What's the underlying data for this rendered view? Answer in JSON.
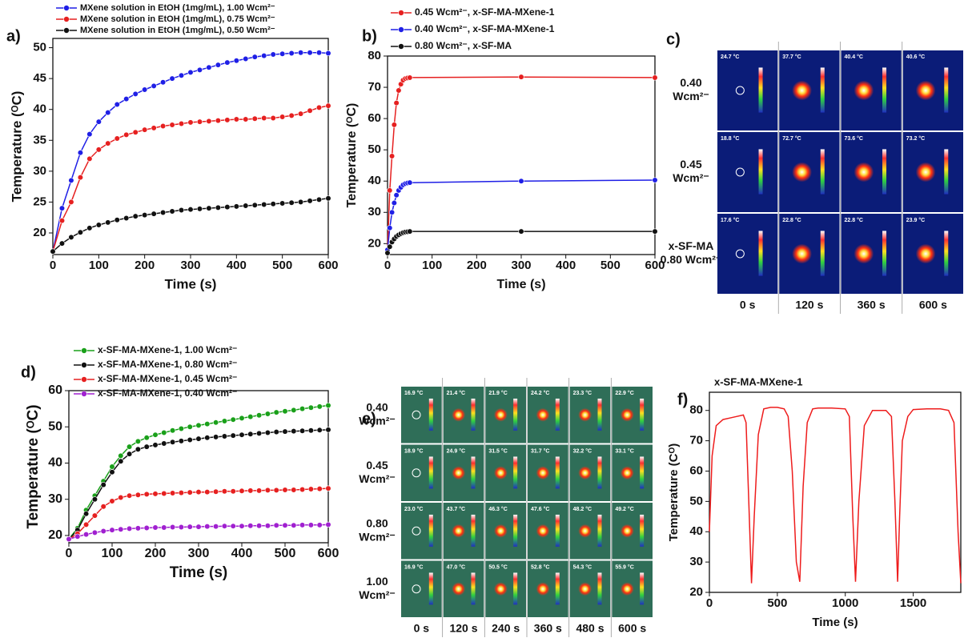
{
  "chart_data": [
    {
      "type": "line",
      "label": "a)",
      "xlabel": "Time (s)",
      "ylabel": "Temperature (ᴼC)",
      "markers": true,
      "xlim": [
        0,
        600
      ],
      "xticks": [
        0,
        100,
        200,
        300,
        400,
        500,
        600
      ],
      "ylim": [
        16.5,
        51.5
      ],
      "yticks": [
        20,
        25,
        30,
        35,
        40,
        45,
        50
      ],
      "x": [
        0,
        20,
        40,
        60,
        80,
        100,
        120,
        140,
        160,
        180,
        200,
        220,
        240,
        260,
        280,
        300,
        320,
        340,
        360,
        380,
        400,
        420,
        440,
        460,
        480,
        500,
        520,
        540,
        560,
        580,
        600
      ],
      "series": [
        {
          "name": "MXene solution in EtOH (1mg/mL), 1.00 Wcm²⁻",
          "color": "#1f1fe6",
          "values": [
            17,
            24,
            28.5,
            33,
            36,
            38,
            39.5,
            40.8,
            41.7,
            42.5,
            43.2,
            43.8,
            44.4,
            45,
            45.5,
            46,
            46.4,
            46.8,
            47.2,
            47.6,
            47.9,
            48.2,
            48.5,
            48.7,
            48.9,
            49,
            49.1,
            49.2,
            49.2,
            49.2,
            49.1
          ]
        },
        {
          "name": "MXene solution in EtOH (1mg/mL), 0.75 Wcm²⁻",
          "color": "#e62020",
          "values": [
            17,
            22,
            25,
            29,
            32,
            33.5,
            34.5,
            35.3,
            35.9,
            36.3,
            36.7,
            37,
            37.3,
            37.5,
            37.7,
            37.9,
            38,
            38.1,
            38.2,
            38.3,
            38.4,
            38.4,
            38.5,
            38.6,
            38.6,
            38.8,
            39,
            39.3,
            39.8,
            40.3,
            40.6
          ]
        },
        {
          "name": "MXene solution in EtOH (1mg/mL), 0.50 Wcm²⁻",
          "color": "#111111",
          "values": [
            17,
            18.3,
            19.3,
            20.1,
            20.8,
            21.3,
            21.7,
            22.1,
            22.4,
            22.7,
            22.9,
            23.1,
            23.3,
            23.5,
            23.7,
            23.8,
            23.9,
            24,
            24.1,
            24.2,
            24.3,
            24.4,
            24.5,
            24.6,
            24.7,
            24.8,
            24.9,
            25,
            25.2,
            25.4,
            25.6
          ]
        }
      ]
    },
    {
      "type": "line",
      "label": "b)",
      "xlabel": "Time (s)",
      "ylabel": "Temperature (ᴼC)",
      "markers": true,
      "xlim": [
        0,
        600
      ],
      "xticks": [
        0,
        100,
        200,
        300,
        400,
        500,
        600
      ],
      "ylim": [
        16.5,
        80
      ],
      "yticks": [
        20,
        30,
        40,
        50,
        60,
        70,
        80
      ],
      "x": [
        0,
        5,
        10,
        15,
        20,
        25,
        30,
        35,
        40,
        45,
        50,
        300,
        600
      ],
      "series": [
        {
          "name": "0.45 Wcm²⁻, x-SF-MA-MXene-1",
          "color": "#e62020",
          "values": [
            18,
            37,
            48,
            58,
            65,
            69,
            71,
            72.3,
            72.8,
            73,
            73.1,
            73.3,
            73.1
          ]
        },
        {
          "name": "0.40 Wcm²⁻, x-SF-MA-MXene-1",
          "color": "#1f1fe6",
          "values": [
            18,
            25,
            30,
            33,
            35.5,
            37,
            38,
            38.8,
            39.2,
            39.4,
            39.5,
            40,
            40.3
          ]
        },
        {
          "name": "0.80 Wcm²⁻, x-SF-MA",
          "color": "#111111",
          "values": [
            17,
            19,
            20.5,
            21.5,
            22.3,
            22.8,
            23.2,
            23.5,
            23.7,
            23.8,
            23.9,
            23.9,
            23.9
          ]
        }
      ]
    },
    {
      "type": "thermal-grid",
      "label": "c)",
      "background": "#0b1c78",
      "rows": [
        [
          "0.40",
          "Wcm²⁻"
        ],
        [
          "0.45",
          "Wcm²⁻"
        ],
        [
          "x-SF-MA",
          "0.80 Wcm²⁻"
        ]
      ],
      "columns": [
        "0 s",
        "120 s",
        "360 s",
        "600 s"
      ],
      "readings": [
        [
          "24.7 °C",
          "37.7 °C",
          "40.4 °C",
          "40.6 °C"
        ],
        [
          "18.8 °C",
          "72.7 °C",
          "73.6 °C",
          "73.2 °C"
        ],
        [
          "17.6 °C",
          "22.8 °C",
          "22.8 °C",
          "23.9 °C"
        ]
      ]
    },
    {
      "type": "line",
      "label": "d)",
      "xlabel": "Time (s)",
      "ylabel": "Temperature (ᴼC)",
      "markers": true,
      "xlim": [
        0,
        600
      ],
      "xticks": [
        0,
        100,
        200,
        300,
        400,
        500,
        600
      ],
      "ylim": [
        18,
        60
      ],
      "yticks": [
        20,
        30,
        40,
        50,
        60
      ],
      "x": [
        0,
        20,
        40,
        60,
        80,
        100,
        120,
        140,
        160,
        180,
        200,
        220,
        240,
        260,
        280,
        300,
        320,
        340,
        360,
        380,
        400,
        420,
        440,
        460,
        480,
        500,
        520,
        540,
        560,
        580,
        600
      ],
      "series": [
        {
          "name": "x-SF-MA-MXene-1, 1.00 Wcm²⁻",
          "color": "#1aa01a",
          "values": [
            19,
            22,
            27,
            31,
            35,
            39,
            42,
            44.5,
            46,
            47,
            47.8,
            48.4,
            49,
            49.5,
            50,
            50.4,
            50.8,
            51.2,
            51.6,
            52,
            52.4,
            52.8,
            53.2,
            53.6,
            54,
            54.3,
            54.6,
            55,
            55.3,
            55.6,
            55.9
          ]
        },
        {
          "name": "x-SF-MA-MXene-1, 0.80 Wcm²⁻",
          "color": "#111111",
          "values": [
            19,
            21.5,
            26,
            30,
            34,
            37.5,
            40.5,
            42.5,
            43.8,
            44.5,
            45,
            45.4,
            45.8,
            46.1,
            46.4,
            46.7,
            47,
            47.2,
            47.4,
            47.6,
            47.8,
            48,
            48.2,
            48.4,
            48.6,
            48.7,
            48.8,
            48.9,
            49,
            49.1,
            49.2
          ]
        },
        {
          "name": "x-SF-MA-MXene-1, 0.45 Wcm²⁻",
          "color": "#e62020",
          "values": [
            19,
            20.5,
            23,
            25.5,
            28,
            29.5,
            30.5,
            31,
            31.2,
            31.4,
            31.5,
            31.6,
            31.7,
            31.8,
            31.9,
            32,
            32,
            32.1,
            32.2,
            32.2,
            32.3,
            32.4,
            32.4,
            32.5,
            32.5,
            32.6,
            32.6,
            32.7,
            32.8,
            32.9,
            33
          ]
        },
        {
          "name": "x-SF-MA-MXene-1, 0.40 Wcm²⁻",
          "color": "#a020d0",
          "values": [
            19,
            19.7,
            20.3,
            20.8,
            21.2,
            21.5,
            21.7,
            21.9,
            22,
            22.1,
            22.2,
            22.2,
            22.3,
            22.3,
            22.4,
            22.4,
            22.5,
            22.5,
            22.6,
            22.6,
            22.6,
            22.7,
            22.7,
            22.7,
            22.8,
            22.8,
            22.8,
            22.9,
            22.9,
            22.9,
            23
          ]
        }
      ]
    },
    {
      "type": "thermal-grid",
      "label": "e)",
      "background": "#2f6e58",
      "rows": [
        [
          "0.40",
          "Wcm²⁻"
        ],
        [
          "0.45",
          "Wcm²⁻"
        ],
        [
          "0.80",
          "Wcm²⁻"
        ],
        [
          "1.00",
          "Wcm²⁻"
        ]
      ],
      "columns": [
        "0 s",
        "120 s",
        "240 s",
        "360 s",
        "480 s",
        "600 s"
      ],
      "readings": [
        [
          "16.9 °C",
          "21.4 °C",
          "21.9 °C",
          "24.2 °C",
          "23.3 °C",
          "22.9 °C"
        ],
        [
          "18.9 °C",
          "24.9 °C",
          "31.5 °C",
          "31.7 °C",
          "32.2 °C",
          "33.1 °C"
        ],
        [
          "23.0 °C",
          "43.7 °C",
          "46.3 °C",
          "47.6 °C",
          "48.2 °C",
          "49.2 °C"
        ],
        [
          "16.9 °C",
          "47.0 °C",
          "50.5 °C",
          "52.8 °C",
          "54.3 °C",
          "55.9 °C"
        ]
      ]
    },
    {
      "type": "line",
      "label": "f)",
      "title": "x-SF-MA-MXene-1",
      "xlabel": "Time (s)",
      "ylabel": "Temperature (Cᴼ)",
      "markers": false,
      "xlim": [
        0,
        1850
      ],
      "xticks": [
        0,
        500,
        1000,
        1500
      ],
      "ylim": [
        20,
        86
      ],
      "yticks": [
        20,
        30,
        40,
        50,
        60,
        70,
        80
      ],
      "x": [
        0,
        20,
        50,
        100,
        150,
        200,
        250,
        270,
        290,
        310,
        330,
        360,
        400,
        450,
        500,
        550,
        580,
        610,
        640,
        665,
        690,
        720,
        760,
        800,
        900,
        1000,
        1030,
        1055,
        1075,
        1100,
        1140,
        1200,
        1300,
        1340,
        1365,
        1385,
        1400,
        1420,
        1460,
        1500,
        1600,
        1700,
        1760,
        1800,
        1830,
        1850
      ],
      "series": [
        {
          "color": "#ee1c1c",
          "values": [
            40,
            65,
            75,
            77,
            77.5,
            78,
            78.5,
            76,
            50,
            23,
            45,
            72,
            80.5,
            81,
            81,
            80.5,
            78,
            60,
            30,
            23.5,
            55,
            76,
            80.5,
            80.8,
            80.8,
            80.5,
            78,
            45,
            23.5,
            50,
            75,
            80,
            80,
            78,
            50,
            23.5,
            45,
            70,
            78,
            80.3,
            80.5,
            80.5,
            80,
            76,
            40,
            23
          ]
        }
      ]
    }
  ]
}
